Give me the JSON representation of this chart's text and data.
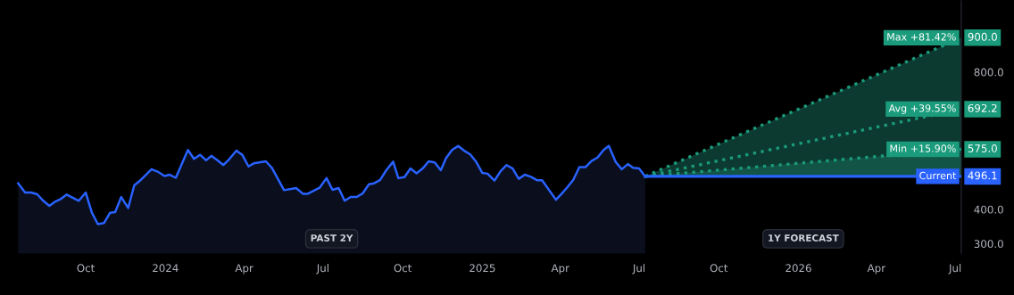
{
  "chart_data": {
    "type": "line",
    "xlim": [
      "2023-06-24",
      "2026-07-08"
    ],
    "xticks": [
      {
        "value": "2023-10-01",
        "label": "Oct"
      },
      {
        "value": "2024-01-01",
        "label": "2024"
      },
      {
        "value": "2024-04-01",
        "label": "Apr"
      },
      {
        "value": "2024-07-01",
        "label": "Jul"
      },
      {
        "value": "2024-10-01",
        "label": "Oct"
      },
      {
        "value": "2025-01-01",
        "label": "2025"
      },
      {
        "value": "2025-04-01",
        "label": "Apr"
      },
      {
        "value": "2025-07-01",
        "label": "Jul"
      },
      {
        "value": "2025-10-01",
        "label": "Oct"
      },
      {
        "value": "2026-01-01",
        "label": "2026"
      },
      {
        "value": "2026-04-01",
        "label": "Apr"
      },
      {
        "value": "2026-07-01",
        "label": "Jul"
      }
    ],
    "ylim": [
      270,
      1010
    ],
    "yticks": [
      {
        "value": 300,
        "label": "300.0"
      },
      {
        "value": 400,
        "label": "400.0"
      },
      {
        "value": 800,
        "label": "800.0"
      }
    ],
    "grid": false,
    "legend": "right",
    "marker": "none",
    "annotations": [
      "PAST 2Y",
      "1Y FORECAST"
    ],
    "series": [
      {
        "type": "area",
        "color": "#2962ff",
        "x": [
          "2023-07-15",
          "2023-07-23",
          "2023-07-30",
          "2023-08-06",
          "2023-08-13",
          "2023-08-20",
          "2023-08-27",
          "2023-09-02",
          "2023-09-09",
          "2023-09-16",
          "2023-09-23",
          "2023-10-01",
          "2023-10-08",
          "2023-10-15",
          "2023-10-22",
          "2023-10-29",
          "2023-11-04",
          "2023-11-11",
          "2023-11-19",
          "2023-11-26",
          "2023-12-02",
          "2023-12-16",
          "2023-12-23",
          "2023-12-31",
          "2024-01-06",
          "2024-01-13",
          "2024-01-27",
          "2024-02-03",
          "2024-02-10",
          "2024-02-17",
          "2024-02-23",
          "2024-03-01",
          "2024-03-08",
          "2024-03-15",
          "2024-03-23",
          "2024-03-30",
          "2024-04-06",
          "2024-04-12",
          "2024-04-26",
          "2024-05-03",
          "2024-05-17",
          "2024-05-31",
          "2024-06-08",
          "2024-06-13",
          "2024-06-27",
          "2024-07-05",
          "2024-07-12",
          "2024-07-19",
          "2024-07-26",
          "2024-08-02",
          "2024-08-09",
          "2024-08-16",
          "2024-08-23",
          "2024-08-29",
          "2024-09-05",
          "2024-09-12",
          "2024-09-20",
          "2024-09-26",
          "2024-10-03",
          "2024-10-10",
          "2024-10-17",
          "2024-10-24",
          "2024-10-31",
          "2024-11-07",
          "2024-11-14",
          "2024-11-20",
          "2024-11-27",
          "2024-12-04",
          "2024-12-11",
          "2024-12-18",
          "2024-12-25",
          "2025-01-01",
          "2025-01-07",
          "2025-01-15",
          "2025-01-22",
          "2025-01-29",
          "2025-02-05",
          "2025-02-12",
          "2025-02-19",
          "2025-02-26",
          "2025-03-05",
          "2025-03-11",
          "2025-03-27",
          "2025-04-03",
          "2025-04-09",
          "2025-04-16",
          "2025-04-23",
          "2025-04-30",
          "2025-05-07",
          "2025-05-14",
          "2025-05-21",
          "2025-05-27",
          "2025-06-04",
          "2025-06-11",
          "2025-06-18",
          "2025-06-24",
          "2025-07-01",
          "2025-07-08"
        ],
        "values": [
          476,
          449,
          449,
          444,
          425,
          410,
          423,
          430,
          443,
          434,
          425,
          449,
          391,
          357,
          360,
          390,
          392,
          436,
          404,
          470,
          482,
          517,
          510,
          497,
          501,
          492,
          573,
          547,
          559,
          543,
          556,
          543,
          529,
          547,
          571,
          558,
          525,
          534,
          540,
          521,
          456,
          462,
          445,
          445,
          463,
          491,
          457,
          462,
          425,
          436,
          436,
          447,
          473,
          476,
          486,
          514,
          539,
          491,
          494,
          519,
          505,
          519,
          540,
          537,
          514,
          549,
          573,
          585,
          571,
          560,
          538,
          506,
          504,
          484,
          511,
          529,
          519,
          489,
          501,
          495,
          485,
          485,
          428,
          447,
          464,
          486,
          523,
          523,
          541,
          551,
          573,
          585,
          538,
          517,
          532,
          521,
          519,
          496.1
        ]
      },
      {
        "name": "Max +81.42%",
        "color": "#1a9b7b",
        "line_style": "dotted",
        "x": [
          "2025-07-08",
          "2026-07-08"
        ],
        "values": [
          496.1,
          900.0
        ],
        "lower": [
          496.1,
          496.1
        ],
        "upper": [
          496.1,
          900.0
        ],
        "value_labels": [
          null,
          "900.0"
        ]
      },
      {
        "name": "Avg +39.55%",
        "color": "#1a9b7b",
        "line_style": "dotted",
        "x": [
          "2025-07-08",
          "2026-07-08"
        ],
        "values": [
          496.1,
          692.2
        ],
        "value_labels": [
          null,
          "692.2"
        ]
      },
      {
        "name": "Min +15.90%",
        "color": "#1a9b7b",
        "line_style": "dotted",
        "x": [
          "2025-07-08",
          "2026-07-08"
        ],
        "values": [
          496.1,
          575.0
        ],
        "lower": [
          496.1,
          496.1
        ],
        "upper": [
          496.1,
          575.0
        ],
        "value_labels": [
          null,
          "575.0"
        ]
      },
      {
        "name": "Current",
        "color": "#2962ff",
        "line_style": "solid",
        "x": [
          "2025-07-08",
          "2026-07-08"
        ],
        "values": [
          496.1,
          496.1
        ],
        "value_labels": [
          null,
          "496.1"
        ]
      }
    ]
  }
}
